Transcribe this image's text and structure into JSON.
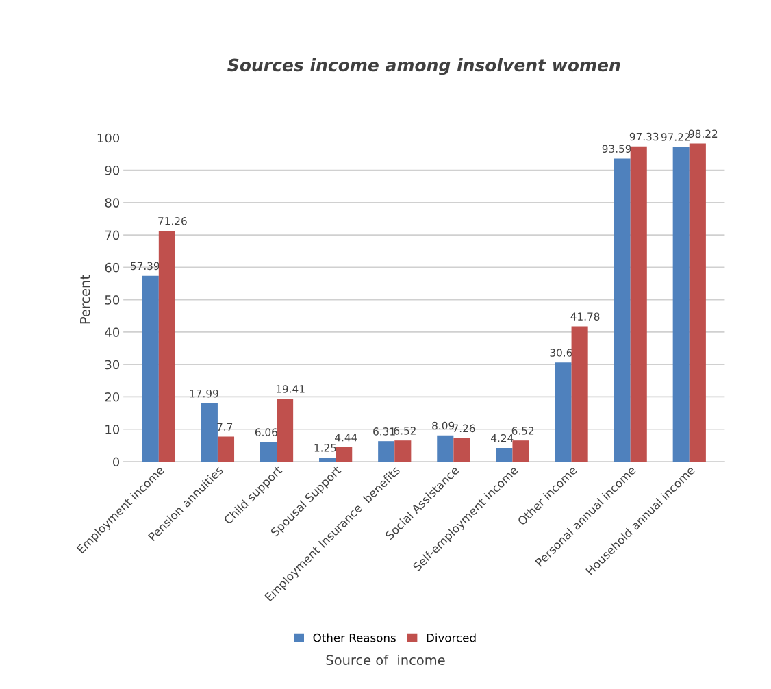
{
  "chart_data": {
    "type": "bar",
    "title": "Sources income among insolvent women",
    "xlabel": "Source of  income",
    "ylabel": "Percent",
    "categories": [
      "Employment income",
      "Pension annuities",
      "Child support",
      "Spousal Support",
      "Employment Insurance  benefits",
      "Social Assistance",
      "Self-employment income",
      "Other income",
      "Personal annual income",
      "Household annual income"
    ],
    "series": [
      {
        "name": "Other Reasons",
        "color": "#4f81bd",
        "values": [
          57.39,
          17.99,
          6.06,
          1.25,
          6.31,
          8.09,
          4.24,
          30.6,
          93.59,
          97.22
        ]
      },
      {
        "name": "Divorced",
        "color": "#c0504d",
        "values": [
          71.26,
          7.7,
          19.41,
          4.44,
          6.52,
          7.26,
          6.52,
          41.78,
          97.33,
          98.22
        ]
      }
    ],
    "ylim": [
      0,
      100
    ],
    "yticks": [
      0,
      10,
      20,
      30,
      40,
      50,
      60,
      70,
      80,
      90,
      100
    ],
    "grid": "y",
    "legend": "bottom",
    "data_labels": true
  }
}
